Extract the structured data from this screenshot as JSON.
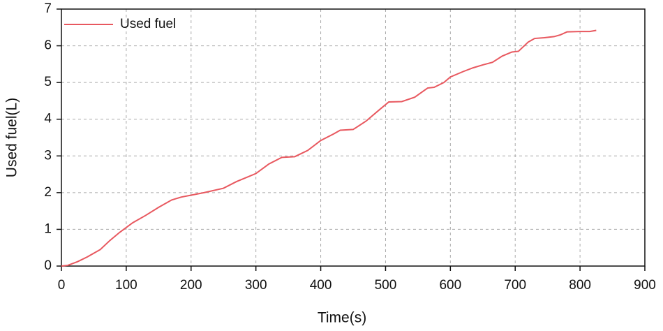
{
  "chart_data": {
    "type": "line",
    "x_label": "Time(s)",
    "y_label": "Used fuel(L)",
    "x": [
      0,
      10,
      25,
      40,
      60,
      75,
      90,
      110,
      130,
      150,
      170,
      185,
      200,
      220,
      250,
      270,
      300,
      320,
      340,
      360,
      380,
      400,
      420,
      430,
      450,
      470,
      490,
      505,
      525,
      545,
      565,
      575,
      590,
      600,
      620,
      635,
      650,
      665,
      680,
      695,
      705,
      720,
      730,
      745,
      760,
      770,
      780,
      800,
      815,
      825
    ],
    "series": [
      {
        "name": "Used fuel",
        "color": "#e8585f",
        "values": [
          0,
          0.02,
          0.12,
          0.25,
          0.45,
          0.7,
          0.92,
          1.18,
          1.38,
          1.6,
          1.8,
          1.88,
          1.93,
          2.0,
          2.12,
          2.3,
          2.52,
          2.78,
          2.96,
          2.98,
          3.15,
          3.42,
          3.6,
          3.7,
          3.72,
          3.95,
          4.25,
          4.47,
          4.48,
          4.6,
          4.85,
          4.87,
          5.0,
          5.15,
          5.3,
          5.4,
          5.48,
          5.55,
          5.72,
          5.83,
          5.85,
          6.1,
          6.2,
          6.22,
          6.25,
          6.3,
          6.38,
          6.39,
          6.39,
          6.42
        ]
      }
    ],
    "xlim": [
      0,
      900
    ],
    "xticks": [
      0,
      100,
      200,
      300,
      400,
      500,
      600,
      700,
      800,
      900
    ],
    "ylim": [
      0,
      7
    ],
    "yticks": [
      0,
      1,
      2,
      3,
      4,
      5,
      6,
      7
    ],
    "grid": true,
    "legend": "upper-left"
  }
}
